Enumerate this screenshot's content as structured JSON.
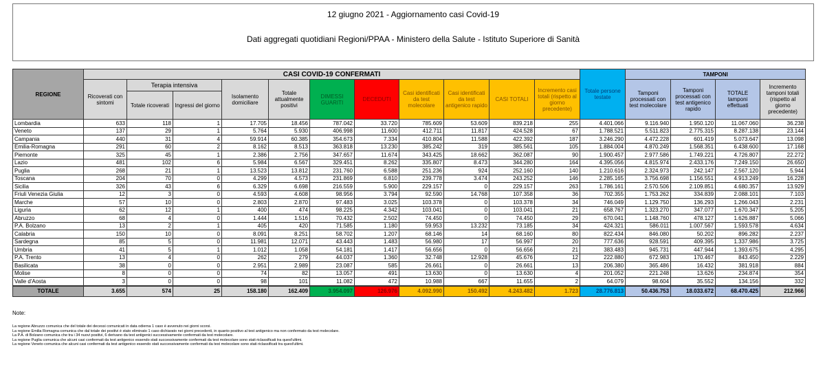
{
  "header": {
    "title": "12 giugno 2021 - Aggiornamento casi Covid-19",
    "subtitle": "Dati aggregati quotidiani Regioni/PPAA - Ministero della Salute - Istituto Superiore di Sanità"
  },
  "colors": {
    "dimessi": "#00b050",
    "deceduti": "#ff0000",
    "casi": "#ffc000",
    "persone": "#00b0f0",
    "tamponi": "#b4c6e7",
    "neutral": "#d9d9d9"
  },
  "table": {
    "group_casi": "CASI COVID-19 CONFERMATI",
    "group_tamponi": "TAMPONI",
    "group_terapia": "Terapia intensiva",
    "columns": {
      "regione": "REGIONE",
      "ricoverati": "Ricoverati con sintomi",
      "ti_totale": "Totale ricoverati",
      "ti_ingressi": "Ingressi del giorno",
      "isolamento": "Isolamento domiciliare",
      "positivi": "Totale attualmente positivi",
      "dimessi": "DIMESSI GUARITI",
      "deceduti": "DECEDUTI",
      "casi_mol": "Casi identificati da test molecolare",
      "casi_ant": "Casi identificati da test antigenico rapido",
      "casi_tot": "CASI TOTALI",
      "incr_casi": "Incremento casi totali (rispetto al giorno precedente)",
      "persone": "Totale persone testate",
      "tamp_mol": "Tamponi processati con test molecolare",
      "tamp_ant": "Tamponi processati con test antigenico rapido",
      "tamp_tot": "TOTALE tamponi effettuati",
      "incr_tamp": "Incremento tamponi totali (rispetto al giorno precedente)"
    },
    "rows": [
      [
        "Lombardia",
        "633",
        "118",
        "1",
        "17.705",
        "18.456",
        "787.042",
        "33.720",
        "785.609",
        "53.609",
        "839.218",
        "255",
        "4.401.066",
        "9.116.940",
        "1.950.120",
        "11.067.060",
        "36.238"
      ],
      [
        "Veneto",
        "137",
        "29",
        "1",
        "5.764",
        "5.930",
        "406.998",
        "11.600",
        "412.711",
        "11.817",
        "424.528",
        "67",
        "1.788.521",
        "5.511.823",
        "2.775.315",
        "8.287.138",
        "23.144"
      ],
      [
        "Campania",
        "440",
        "31",
        "4",
        "59.914",
        "60.385",
        "354.673",
        "7.334",
        "410.804",
        "11.588",
        "422.392",
        "187",
        "3.246.290",
        "4.472.228",
        "601.419",
        "5.073.647",
        "13.098"
      ],
      [
        "Emilia-Romagna",
        "291",
        "60",
        "2",
        "8.162",
        "8.513",
        "363.818",
        "13.230",
        "385.242",
        "319",
        "385.561",
        "105",
        "1.884.004",
        "4.870.249",
        "1.568.351",
        "6.438.600",
        "17.168"
      ],
      [
        "Piemonte",
        "325",
        "45",
        "1",
        "2.386",
        "2.756",
        "347.657",
        "11.674",
        "343.425",
        "18.662",
        "362.087",
        "90",
        "1.900.457",
        "2.977.586",
        "1.749.221",
        "4.726.807",
        "22.272"
      ],
      [
        "Lazio",
        "481",
        "102",
        "6",
        "5.984",
        "6.567",
        "329.451",
        "8.262",
        "335.807",
        "8.473",
        "344.280",
        "164",
        "4.395.056",
        "4.815.974",
        "2.433.176",
        "7.249.150",
        "26.650"
      ],
      [
        "Puglia",
        "268",
        "21",
        "1",
        "13.523",
        "13.812",
        "231.760",
        "6.588",
        "251.236",
        "924",
        "252.160",
        "140",
        "1.210.616",
        "2.324.973",
        "242.147",
        "2.567.120",
        "5.944"
      ],
      [
        "Toscana",
        "204",
        "70",
        "0",
        "4.299",
        "4.573",
        "231.869",
        "6.810",
        "239.778",
        "3.474",
        "243.252",
        "146",
        "2.285.165",
        "3.756.698",
        "1.156.551",
        "4.913.249",
        "16.228"
      ],
      [
        "Sicilia",
        "326",
        "43",
        "6",
        "6.329",
        "6.698",
        "216.559",
        "5.900",
        "229.157",
        "0",
        "229.157",
        "263",
        "1.786.161",
        "2.570.506",
        "2.109.851",
        "4.680.357",
        "13.929"
      ],
      [
        "Friuli Venezia Giulia",
        "12",
        "3",
        "0",
        "4.593",
        "4.608",
        "98.956",
        "3.794",
        "92.590",
        "14.768",
        "107.358",
        "36",
        "702.355",
        "1.753.262",
        "334.839",
        "2.088.101",
        "7.103"
      ],
      [
        "Marche",
        "57",
        "10",
        "0",
        "2.803",
        "2.870",
        "97.483",
        "3.025",
        "103.378",
        "0",
        "103.378",
        "34",
        "746.049",
        "1.129.750",
        "136.293",
        "1.266.043",
        "2.231"
      ],
      [
        "Liguria",
        "62",
        "12",
        "1",
        "400",
        "474",
        "98.225",
        "4.342",
        "103.041",
        "0",
        "103.041",
        "21",
        "658.767",
        "1.323.270",
        "347.077",
        "1.670.347",
        "5.205"
      ],
      [
        "Abruzzo",
        "68",
        "4",
        "0",
        "1.444",
        "1.516",
        "70.432",
        "2.502",
        "74.450",
        "0",
        "74.450",
        "29",
        "670.041",
        "1.148.760",
        "478.127",
        "1.626.887",
        "5.066"
      ],
      [
        "P.A. Bolzano",
        "13",
        "2",
        "1",
        "405",
        "420",
        "71.585",
        "1.180",
        "59.953",
        "13.232",
        "73.185",
        "34",
        "424.321",
        "586.011",
        "1.007.567",
        "1.593.578",
        "4.634"
      ],
      [
        "Calabria",
        "150",
        "10",
        "0",
        "8.091",
        "8.251",
        "58.702",
        "1.207",
        "68.146",
        "14",
        "68.160",
        "80",
        "822.434",
        "846.080",
        "50.202",
        "896.282",
        "2.237"
      ],
      [
        "Sardegna",
        "85",
        "5",
        "0",
        "11.981",
        "12.071",
        "43.443",
        "1.483",
        "56.980",
        "17",
        "56.997",
        "20",
        "777.636",
        "928.591",
        "409.395",
        "1.337.986",
        "3.725"
      ],
      [
        "Umbria",
        "41",
        "5",
        "1",
        "1.012",
        "1.058",
        "54.181",
        "1.417",
        "56.656",
        "0",
        "56.656",
        "21",
        "383.483",
        "945.731",
        "447.944",
        "1.393.675",
        "4.295"
      ],
      [
        "P.A. Trento",
        "13",
        "4",
        "0",
        "262",
        "279",
        "44.037",
        "1.360",
        "32.748",
        "12.928",
        "45.676",
        "12",
        "222.880",
        "672.983",
        "170.467",
        "843.450",
        "2.229"
      ],
      [
        "Basilicata",
        "38",
        "0",
        "0",
        "2.951",
        "2.989",
        "23.087",
        "585",
        "26.661",
        "0",
        "26.661",
        "13",
        "206.380",
        "365.486",
        "16.432",
        "381.918",
        "884"
      ],
      [
        "Molise",
        "8",
        "0",
        "0",
        "74",
        "82",
        "13.057",
        "491",
        "13.630",
        "0",
        "13.630",
        "4",
        "201.052",
        "221.248",
        "13.626",
        "234.874",
        "354"
      ],
      [
        "Valle d'Aosta",
        "3",
        "0",
        "0",
        "98",
        "101",
        "11.082",
        "472",
        "10.988",
        "667",
        "11.655",
        "2",
        "64.079",
        "98.604",
        "35.552",
        "134.156",
        "332"
      ]
    ],
    "total": [
      "TOTALE",
      "3.655",
      "574",
      "25",
      "158.180",
      "162.409",
      "3.954.097",
      "126.976",
      "4.092.990",
      "150.492",
      "4.243.482",
      "1.723",
      "28.776.813",
      "50.436.753",
      "18.033.672",
      "68.470.425",
      "212.966"
    ]
  },
  "notes": {
    "label": "Note:",
    "items": [
      "La regione Abruzzo comunica che del totale dei decessi comunicati in data odierna 1 caso è avvenuto nei giorni scorsi.",
      "La regione Emilia Romagna comunica che dal totale dei positivi è stato eliminato 1 caso dichiarato nei giorni precedenti, in quanto positivo al test antigenico ma non confermato da test molecolare.",
      "La P.A. di Bolzano comunica che tra i 34 nuovi positivi, 6 derivano da test antigenici successivamente confermati da test molecolare.",
      "La regione Puglia comunica che alcuni casi confermati da test antigenico essendo stati successivamente confermati da test molecolare sono stati riclassificati tra quest'ultimi.",
      "La regione Veneto comunica che alcuni casi confermati da test antigenico essendo stati successivamente confermati da test molecolare sono stati riclassificati tra quest'ultimi."
    ]
  }
}
